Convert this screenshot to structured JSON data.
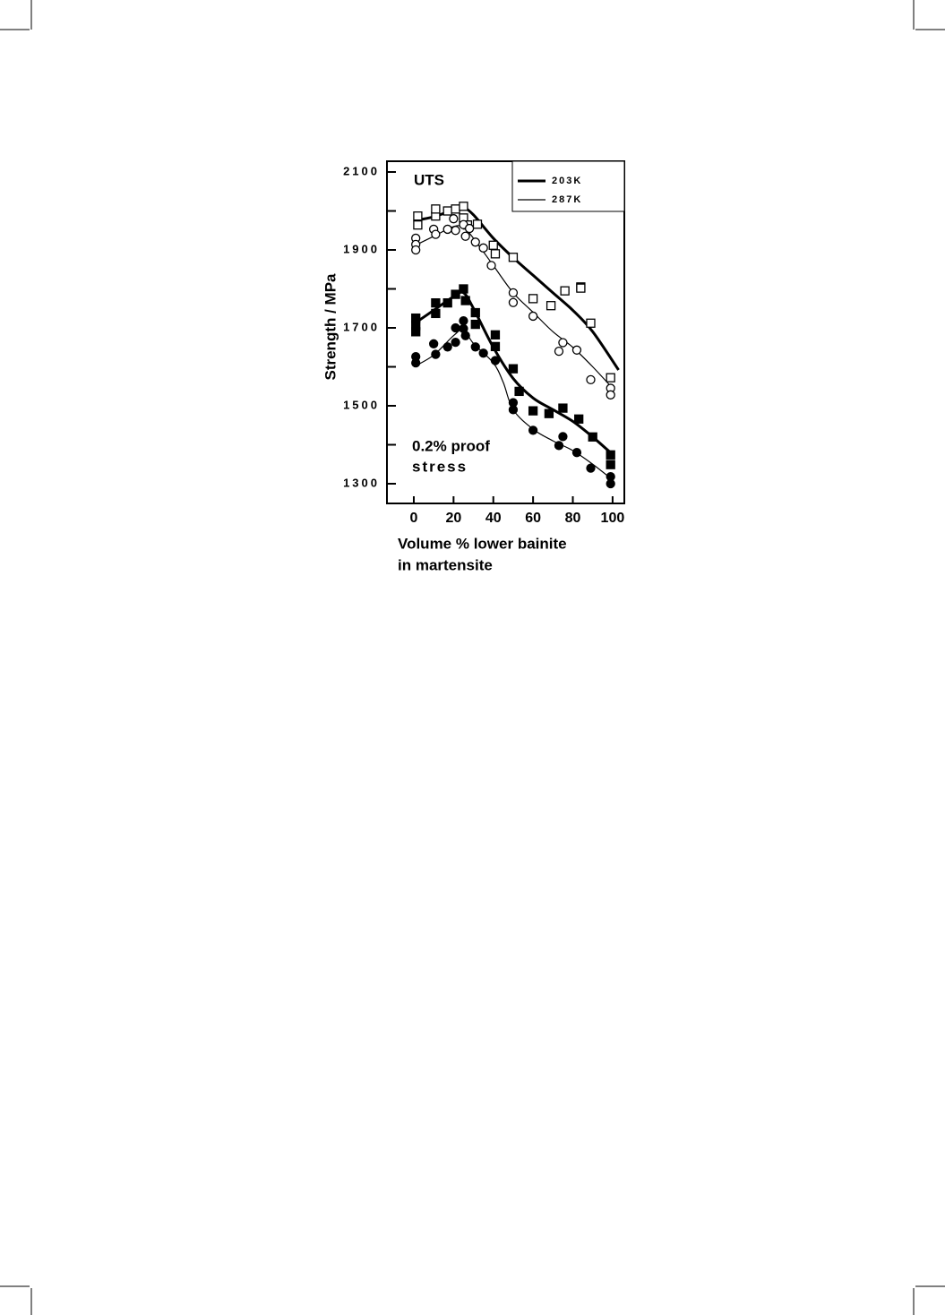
{
  "chart_data": {
    "type": "scatter",
    "ylabel": "Strength  /  MPa",
    "xlabel_lines": [
      "Volume  %  lower  bainite",
      "in    martensite"
    ],
    "annotations": [
      "UTS",
      "0.2% proof",
      "stress"
    ],
    "xlim": [
      -13.5,
      105.9
    ],
    "ylim": [
      1249.4,
      2127.6
    ],
    "xticks": [
      0,
      20,
      40,
      60,
      80,
      100
    ],
    "yticks": [
      1300,
      1500,
      1700,
      1900,
      2100
    ],
    "yminorticks": [
      1400,
      1600,
      1800,
      2000
    ],
    "legend": "upper right",
    "series": [
      {
        "name": "203K",
        "color": "#000000",
        "line_width": 3,
        "marker": "square",
        "groups": [
          {
            "filled": false,
            "x": [
              2,
              2,
              11,
              11,
              17,
              21,
              25,
              25,
              27,
              32,
              40,
              41,
              50,
              60,
              69,
              76,
              84,
              84,
              89,
              99
            ],
            "values": [
              1987,
              1964,
              1987,
              2005,
              2000,
              2005,
              2012,
              1982,
              1964,
              1966,
              1912,
              1890,
              1881,
              1775,
              1757,
              1795,
              1805,
              1802,
              1712,
              1572
            ],
            "fit_x": [
              0,
              10,
              20,
              25,
              30,
              40,
              50,
              60,
              70,
              80,
              90,
              103
            ],
            "fit_values": [
              1975,
              1985,
              2003,
              2008,
              1990,
              1930,
              1880,
              1835,
              1790,
              1745,
              1690,
              1592
            ]
          },
          {
            "filled": true,
            "x": [
              1,
              1,
              1,
              11,
              11,
              17,
              21,
              25,
              26,
              31,
              31,
              41,
              41,
              50,
              53,
              60,
              68,
              75,
              83,
              90,
              99,
              99
            ],
            "values": [
              1725,
              1706,
              1690,
              1764,
              1737,
              1764,
              1786,
              1800,
              1770,
              1739,
              1709,
              1682,
              1652,
              1595,
              1537,
              1487,
              1480,
              1494,
              1466,
              1420,
              1374,
              1349
            ],
            "fit_x": [
              0,
              10,
              20,
              25,
              30,
              40,
              50,
              60,
              70,
              80,
              90,
              100
            ],
            "fit_values": [
              1710,
              1745,
              1780,
              1790,
              1750,
              1650,
              1570,
              1520,
              1490,
              1460,
              1420,
              1375
            ]
          }
        ]
      },
      {
        "name": "287K",
        "color": "#000000",
        "line_width": 1.2,
        "marker": "circle",
        "groups": [
          {
            "filled": false,
            "x": [
              1,
              1,
              1,
              10,
              11,
              17,
              20,
              21,
              25,
              26,
              28,
              31,
              35,
              39,
              50,
              50,
              60,
              73,
              75,
              82,
              89,
              99,
              99
            ],
            "values": [
              1930,
              1914,
              1900,
              1953,
              1940,
              1953,
              1980,
              1950,
              1965,
              1935,
              1955,
              1920,
              1905,
              1860,
              1790,
              1765,
              1730,
              1640,
              1662,
              1643,
              1567,
              1545,
              1528
            ],
            "fit_x": [
              0,
              10,
              20,
              25,
              30,
              40,
              50,
              60,
              70,
              80,
              90,
              100
            ],
            "fit_values": [
              1910,
              1935,
              1960,
              1958,
              1930,
              1860,
              1790,
              1740,
              1690,
              1650,
              1600,
              1545
            ]
          },
          {
            "filled": true,
            "x": [
              1,
              1,
              10,
              11,
              17,
              21,
              21,
              25,
              25,
              26,
              31,
              35,
              41,
              50,
              50,
              60,
              73,
              75,
              82,
              89,
              99,
              99
            ],
            "values": [
              1626,
              1610,
              1659,
              1632,
              1651,
              1663,
              1700,
              1718,
              1698,
              1680,
              1651,
              1635,
              1616,
              1508,
              1490,
              1437,
              1398,
              1421,
              1380,
              1340,
              1318,
              1300
            ],
            "fit_x": [
              0,
              10,
              20,
              25,
              30,
              40,
              45,
              50,
              60,
              70,
              80,
              90,
              100
            ],
            "fit_values": [
              1600,
              1630,
              1680,
              1695,
              1660,
              1610,
              1560,
              1490,
              1440,
              1410,
              1385,
              1350,
              1310
            ]
          }
        ]
      }
    ]
  }
}
